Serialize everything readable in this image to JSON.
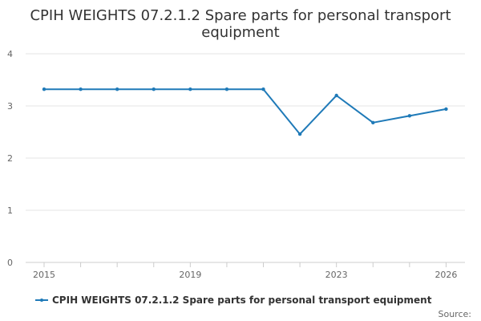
{
  "chart_data": {
    "type": "line",
    "title_lines": [
      "CPIH WEIGHTS 07.2.1.2 Spare parts for personal transport",
      "equipment"
    ],
    "x": [
      2015,
      2016,
      2017,
      2018,
      2019,
      2020,
      2021,
      2022,
      2023,
      2024,
      2025,
      2026
    ],
    "x_tick_labels": [
      "2015",
      "2019",
      "2023",
      "2026"
    ],
    "y_tick_labels": [
      "0",
      "1",
      "2",
      "3",
      "4"
    ],
    "ylim": [
      0,
      4
    ],
    "grid": true,
    "legend_position": "bottom",
    "series": [
      {
        "name": "CPIH WEIGHTS 07.2.1.2 Spare parts for personal transport equipment",
        "color": "#1f7ab8",
        "values": [
          3.32,
          3.32,
          3.32,
          3.32,
          3.32,
          3.32,
          3.32,
          2.46,
          3.2,
          2.68,
          2.81,
          2.94
        ]
      }
    ],
    "source_label": "Source:"
  }
}
